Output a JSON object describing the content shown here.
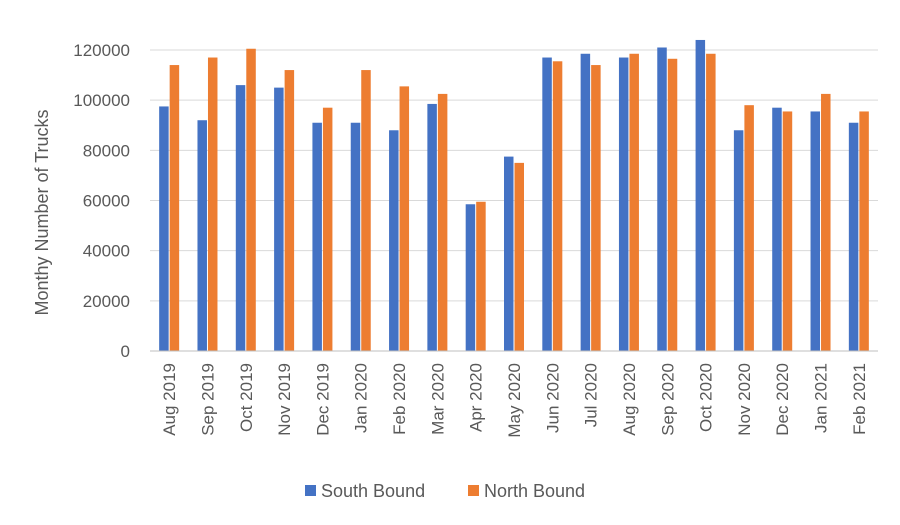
{
  "chart_data": {
    "type": "bar",
    "ylabel": "Monthy Number of Trucks",
    "ylim": [
      0,
      120000
    ],
    "yticks": [
      "0",
      "20000",
      "40000",
      "60000",
      "80000",
      "100000",
      "120000"
    ],
    "ytick_values": [
      0,
      20000,
      40000,
      60000,
      80000,
      100000,
      120000
    ],
    "grid": true,
    "legend_position": "bottom",
    "categories": [
      "Aug 2019",
      "Sep 2019",
      "Oct 2019",
      "Nov 2019",
      "Dec 2019",
      "Jan 2020",
      "Feb 2020",
      "Mar 2020",
      "Apr 2020",
      "May 2020",
      "Jun 2020",
      "Jul 2020",
      "Aug 2020",
      "Sep 2020",
      "Oct 2020",
      "Nov 2020",
      "Dec 2020",
      "Jan 2021",
      "Feb 2021"
    ],
    "series": [
      {
        "name": "South Bound",
        "color": "#4472C4",
        "values": [
          97500,
          92000,
          106000,
          105000,
          91000,
          91000,
          88000,
          98500,
          58500,
          77500,
          117000,
          118500,
          117000,
          121000,
          124000,
          88000,
          97000,
          95500,
          91000
        ]
      },
      {
        "name": "North Bound",
        "color": "#ED7D31",
        "values": [
          114000,
          117000,
          120500,
          112000,
          97000,
          112000,
          105500,
          102500,
          59500,
          75000,
          115500,
          114000,
          118500,
          116500,
          118500,
          98000,
          95500,
          102500,
          95500
        ]
      }
    ]
  }
}
